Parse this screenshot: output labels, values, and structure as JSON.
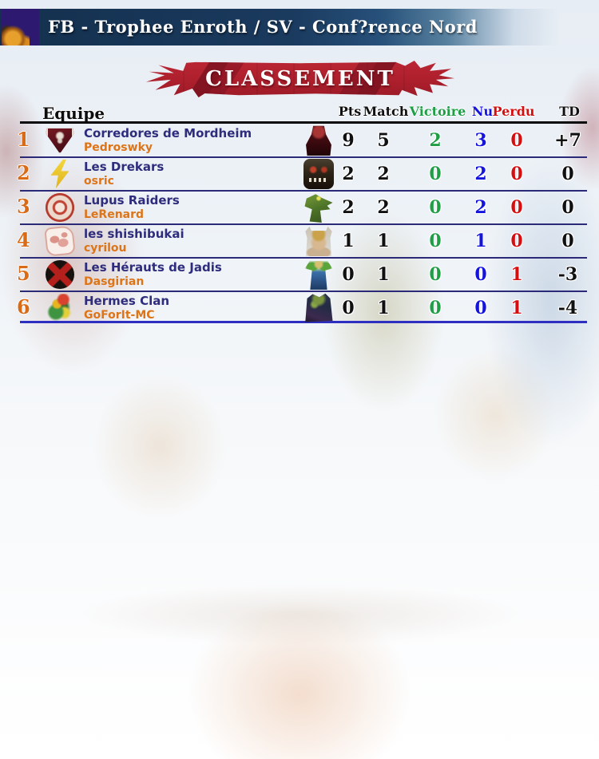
{
  "header": {
    "title": "FB - Trophee Enroth / SV - Conf?rence Nord"
  },
  "banner": {
    "title": "CLASSEMENT"
  },
  "table": {
    "columns": {
      "team": "Equipe",
      "pts": "Pts",
      "match": "Match",
      "win": "Victoire",
      "draw": "Nul",
      "loss": "Perdu",
      "td": "TD"
    },
    "rows": [
      {
        "rank": "1",
        "team": "Corredores de Mordheim",
        "coach": "Pedroswky",
        "logo": "undead-shield",
        "race": "undead",
        "pts": "9",
        "match": "5",
        "win": "2",
        "draw": "3",
        "loss": "0",
        "td": "+7"
      },
      {
        "rank": "2",
        "team": "Les Drekars",
        "coach": "osric",
        "logo": "lightning",
        "race": "orc",
        "pts": "2",
        "match": "2",
        "win": "0",
        "draw": "2",
        "loss": "0",
        "td": "0"
      },
      {
        "rank": "3",
        "team": "Lupus Raiders",
        "coach": "LeRenard",
        "logo": "red-ring",
        "race": "lizard",
        "pts": "2",
        "match": "2",
        "win": "0",
        "draw": "2",
        "loss": "0",
        "td": "0"
      },
      {
        "rank": "4",
        "team": "les shishibukai",
        "coach": "cyrilou",
        "logo": "pink-sketch",
        "race": "dwarf",
        "pts": "1",
        "match": "1",
        "win": "0",
        "draw": "1",
        "loss": "0",
        "td": "0"
      },
      {
        "rank": "5",
        "team": "Les Hérauts de Jadis",
        "coach": "Dasgirian",
        "logo": "black-disc",
        "race": "elf",
        "pts": "0",
        "match": "1",
        "win": "0",
        "draw": "0",
        "loss": "1",
        "td": "-3"
      },
      {
        "rank": "6",
        "team": "Hermes Clan",
        "coach": "GoForIt-MC",
        "logo": "parrot",
        "race": "underworld",
        "pts": "0",
        "match": "1",
        "win": "0",
        "draw": "0",
        "loss": "1",
        "td": "-4"
      }
    ]
  },
  "colors": {
    "win": "#1f9e46",
    "draw": "#1414dd",
    "loss": "#d40f12",
    "rank": "#d96b16",
    "team": "#2e2c7c",
    "coach": "#dd7518",
    "banner": "#ad1f2c",
    "topbar": "#1a3a5e"
  }
}
